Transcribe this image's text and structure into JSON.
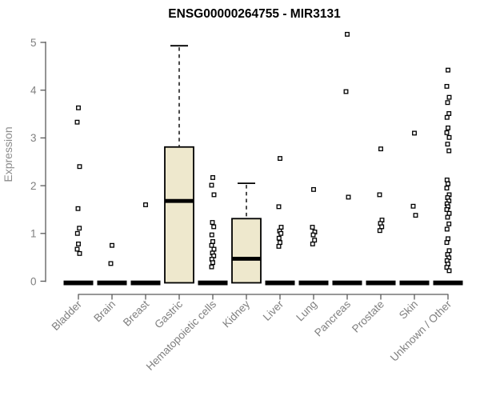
{
  "page": {
    "background": "#ffffff"
  },
  "chart_data": {
    "type": "boxplot",
    "title": "ENSG00000264755 - MIR3131",
    "ylabel": "Expression",
    "xlabel": "",
    "ylim": [
      -0.28,
      5.45
    ],
    "yticks": [
      0,
      1,
      2,
      3,
      4,
      5
    ],
    "grid": false,
    "legend": "none",
    "categories": [
      "Bladder",
      "Brain",
      "Breast",
      "Gastric",
      "Hematopoietic cells",
      "Kidney",
      "Liver",
      "Lung",
      "Pancreas",
      "Prostate",
      "Skin",
      "Unknown / Other"
    ],
    "series": [
      {
        "category": "Bladder",
        "box": null,
        "zero_bar": true,
        "points": [
          3.63,
          3.33,
          2.4,
          1.52,
          1.11,
          1.0,
          0.78,
          0.67,
          0.58
        ]
      },
      {
        "category": "Brain",
        "box": null,
        "zero_bar": true,
        "points": [
          0.75,
          0.37
        ]
      },
      {
        "category": "Breast",
        "box": null,
        "zero_bar": true,
        "points": [
          1.6
        ]
      },
      {
        "category": "Gastric",
        "box": {
          "q1": 0,
          "median": 1.68,
          "q3": 2.81,
          "whisker_low": 0,
          "whisker_high": 4.93
        },
        "zero_bar": false,
        "points": []
      },
      {
        "category": "Hematopoietic cells",
        "box": null,
        "zero_bar": true,
        "points": [
          2.17,
          2.01,
          1.81,
          1.23,
          1.14,
          0.97,
          0.83,
          0.75,
          0.67,
          0.59,
          0.53,
          0.46,
          0.39,
          0.3
        ]
      },
      {
        "category": "Kidney",
        "box": {
          "q1": 0,
          "median": 0.47,
          "q3": 1.31,
          "whisker_low": 0,
          "whisker_high": 2.05
        },
        "zero_bar": false,
        "points": []
      },
      {
        "category": "Liver",
        "box": null,
        "zero_bar": true,
        "points": [
          2.57,
          1.56,
          1.13,
          1.05,
          1.0,
          0.9,
          0.81,
          0.73
        ]
      },
      {
        "category": "Lung",
        "box": null,
        "zero_bar": true,
        "points": [
          1.92,
          1.13,
          1.03,
          0.97,
          0.86,
          0.78
        ]
      },
      {
        "category": "Pancreas",
        "box": null,
        "zero_bar": true,
        "points": [
          5.17,
          3.97,
          1.76
        ]
      },
      {
        "category": "Prostate",
        "box": null,
        "zero_bar": true,
        "points": [
          2.77,
          1.81,
          1.28,
          1.21,
          1.14,
          1.06
        ]
      },
      {
        "category": "Skin",
        "box": null,
        "zero_bar": true,
        "points": [
          3.1,
          1.57,
          1.38
        ]
      },
      {
        "category": "Unknown / Other",
        "box": null,
        "zero_bar": true,
        "points": [
          4.42,
          4.08,
          3.85,
          3.74,
          3.51,
          3.43,
          3.21,
          3.11,
          3.01,
          2.87,
          2.73,
          2.12,
          2.04,
          1.95,
          1.81,
          1.75,
          1.68,
          1.62,
          1.56,
          1.5,
          1.42,
          1.34,
          1.2,
          1.09,
          0.89,
          0.81,
          0.64,
          0.56,
          0.49,
          0.43,
          0.36,
          0.29,
          0.22
        ]
      }
    ],
    "colors": {
      "box_fill": "#eee8cd",
      "box_stroke": "#000000",
      "median_color": "#000000",
      "zero_bar_color": "#000000",
      "point_stroke": "#000000",
      "point_fill": "#ffffff",
      "axis_color": "#5a5a5a",
      "tick_label_color": "#7f7f7f",
      "ylabel_color": "#8c8c8c",
      "title_color": "#000000",
      "background": "#ffffff"
    }
  }
}
